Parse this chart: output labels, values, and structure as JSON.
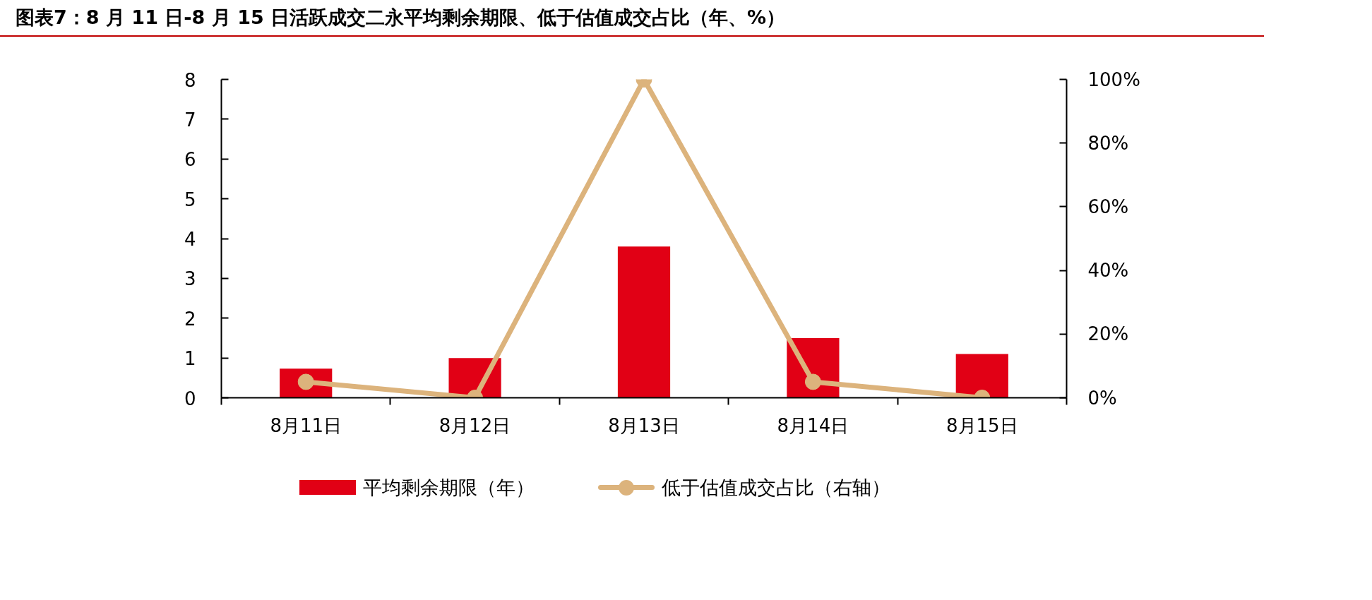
{
  "chart_data": {
    "type": "bar",
    "title": "图表7：8 月 11 日-8 月 15 日活跃成交二永平均剩余期限、低于估值成交占比（年、%）",
    "categories": [
      "8月11日",
      "8月12日",
      "8月13日",
      "8月14日",
      "8月15日"
    ],
    "series": [
      {
        "name": "平均剩余期限（年）",
        "color": "#e10015",
        "values": [
          0.73,
          1.0,
          3.8,
          1.5,
          1.1
        ]
      },
      {
        "name": "低于估值成交占比（右轴）",
        "type": "line",
        "axis": "y2",
        "marker": "circle",
        "color": "#dcb37c",
        "values": [
          5,
          0,
          100,
          5,
          0
        ]
      }
    ],
    "ylim": [
      0,
      8
    ],
    "yticks": [
      0,
      1,
      2,
      3,
      4,
      5,
      6,
      7,
      8
    ],
    "y2lim": [
      0,
      100
    ],
    "y2ticks": [
      {
        "value": 0,
        "label": "0%"
      },
      {
        "value": 20,
        "label": "20%"
      },
      {
        "value": 40,
        "label": "40%"
      },
      {
        "value": 60,
        "label": "60%"
      },
      {
        "value": 80,
        "label": "80%"
      },
      {
        "value": 100,
        "label": "100%"
      }
    ],
    "grid": false,
    "legend": "bottom",
    "line_style": "solid"
  }
}
